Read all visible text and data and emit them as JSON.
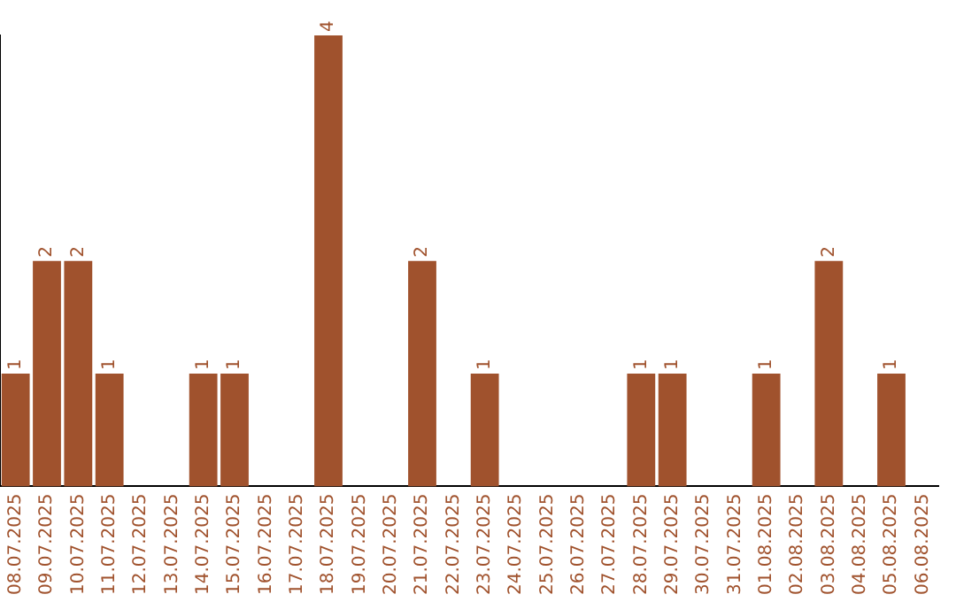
{
  "chart_data": {
    "type": "bar",
    "categories": [
      "08.07.2025",
      "09.07.2025",
      "10.07.2025",
      "11.07.2025",
      "12.07.2025",
      "13.07.2025",
      "14.07.2025",
      "15.07.2025",
      "16.07.2025",
      "17.07.2025",
      "18.07.2025",
      "19.07.2025",
      "20.07.2025",
      "21.07.2025",
      "22.07.2025",
      "23.07.2025",
      "24.07.2025",
      "25.07.2025",
      "26.07.2025",
      "27.07.2025",
      "28.07.2025",
      "29.07.2025",
      "30.07.2025",
      "31.07.2025",
      "01.08.2025",
      "02.08.2025",
      "03.08.2025",
      "04.08.2025",
      "05.08.2025",
      "06.08.2025"
    ],
    "values": [
      1,
      2,
      2,
      1,
      0,
      0,
      1,
      1,
      0,
      0,
      4,
      0,
      0,
      2,
      0,
      1,
      0,
      0,
      0,
      0,
      1,
      1,
      0,
      0,
      1,
      0,
      2,
      0,
      1,
      0
    ],
    "value_labels": [
      "1",
      "2",
      "2",
      "1",
      null,
      null,
      "1",
      "1",
      null,
      null,
      "4",
      null,
      null,
      "2",
      null,
      "1",
      null,
      null,
      null,
      null,
      "1",
      "1",
      null,
      null,
      "1",
      null,
      "2",
      null,
      "1",
      null
    ],
    "color": "#a0522d",
    "ylim": [
      0,
      4
    ],
    "grid": false,
    "legend": false,
    "tick_labels": "x"
  }
}
